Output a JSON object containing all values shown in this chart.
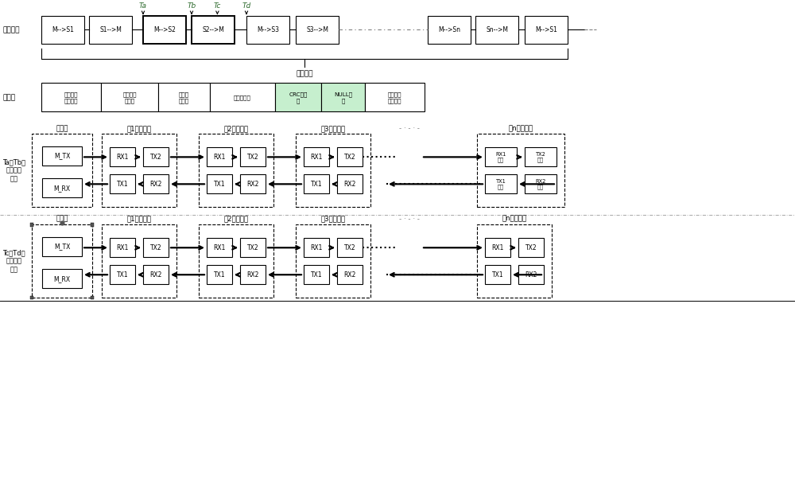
{
  "bg_color": "#ffffff",
  "green_fill": "#c6efce",
  "sec1_label": "数据帧组",
  "sec1_frames": [
    "M-->S1",
    "S1-->M",
    "M-->S2",
    "S2-->M",
    "M-->S3",
    "S3-->M",
    "M-->Sn",
    "Sn-->M",
    "M-->S1"
  ],
  "sec1_brace_label": "通讯周期",
  "sec1_timing": [
    "Ta",
    "Tb",
    "Tc",
    "Td"
  ],
  "sec2_label": "帧结构",
  "sec2_cells": [
    "接收模块\n复位标识",
    "数据包起\n始标识",
    "目标地\n址标识",
    "有效数据组",
    "CRC校验\n码",
    "NULL标\n识",
    "接收模块\n复位标识"
  ],
  "sec2_green": [
    4,
    5
  ],
  "sec3_label": "Ta至Tb时\n间段数据\n流向",
  "sec4_label": "Tc至Td时\n间段数据\n流向",
  "node_headers": [
    "主节点",
    "第1个从节点",
    "第2个从节点",
    "第3个从节点",
    "- · - · -",
    "第n个从节点"
  ],
  "master_boxes": [
    "M_TX",
    "M_RX"
  ],
  "slave_top": [
    "RX1",
    "TX2"
  ],
  "slave_bot": [
    "TX1",
    "RX2"
  ],
  "last_slave_top3": [
    "RX1\n模块",
    "TX2\n模块"
  ],
  "last_slave_bot3": [
    "TX1\n模块",
    "RX2\n模块"
  ],
  "last_slave_top4": [
    "RX1",
    "TX2"
  ],
  "last_slave_bot4": [
    "TX1",
    "RX2"
  ]
}
